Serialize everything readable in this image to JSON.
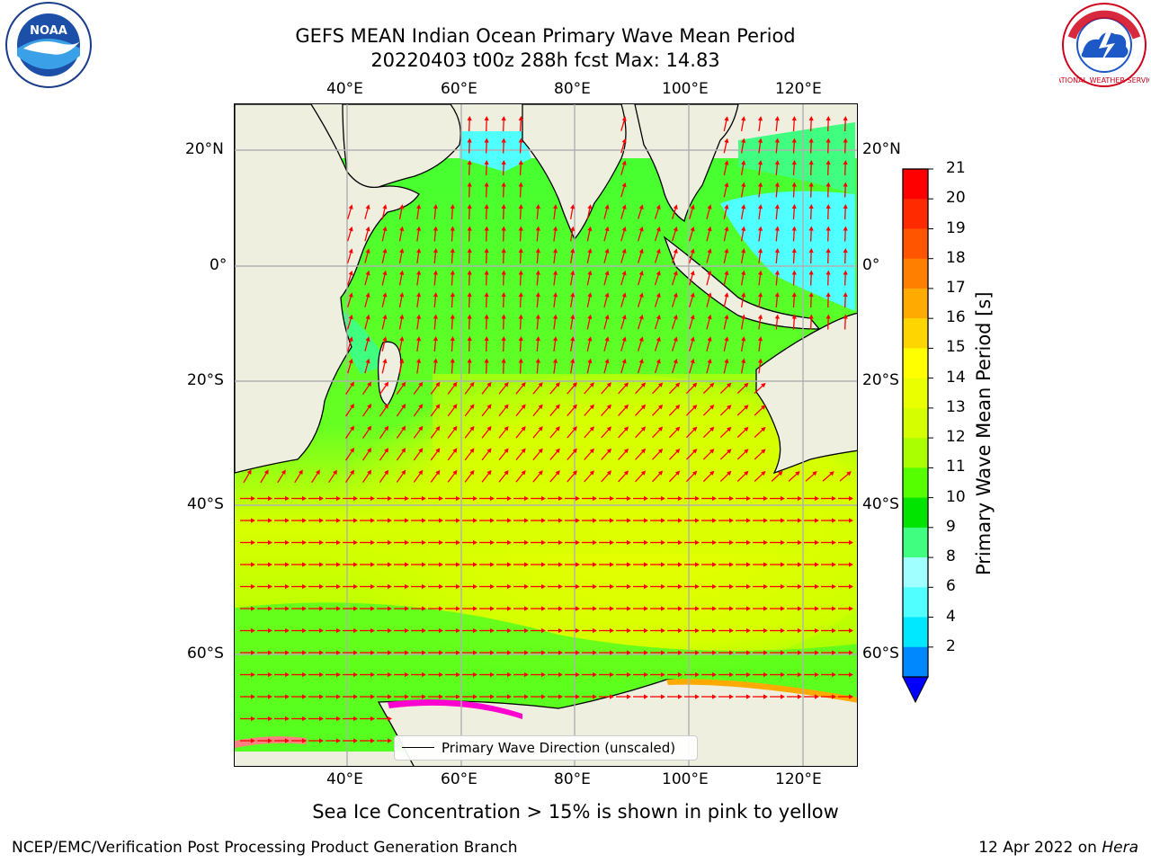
{
  "title_line1": "GEFS MEAN Indian Ocean Primary Wave Mean Period",
  "title_line2": "20220403 t00z 288h fcst   Max: 14.83",
  "legend_label": "Primary Wave Direction (unscaled)",
  "colorbar": {
    "label": "Primary Wave Mean Period [s]",
    "ticks": [
      "21",
      "20",
      "19",
      "18",
      "17",
      "16",
      "15",
      "14",
      "13",
      "12",
      "11",
      "10",
      "9",
      "8",
      "6",
      "4",
      "2"
    ],
    "colors": [
      "#ff0000",
      "#ff2a00",
      "#ff5500",
      "#ff8000",
      "#ffaa00",
      "#ffd500",
      "#ffff00",
      "#eaff00",
      "#d5ff00",
      "#aaff00",
      "#55ff00",
      "#00e400",
      "#40ff80",
      "#a0ffff",
      "#50ffff",
      "#00e8ff",
      "#0088ff"
    ],
    "under_color": "#0000ff"
  },
  "axes": {
    "lon_ticks": [
      "40°E",
      "60°E",
      "80°E",
      "100°E",
      "120°E"
    ],
    "lat_ticks_left": [
      "20°N",
      "0°",
      "20°S",
      "40°S",
      "60°S"
    ],
    "lat_ticks_right": [
      "20°N",
      "0°",
      "20°S",
      "40°S",
      "60°S"
    ]
  },
  "bottom_note": "Sea Ice Concentration > 15% is shown in pink to yellow",
  "footer_left": "NCEP/EMC/Verification Post Processing Product Generation Branch",
  "footer_date": "12 Apr 2022 on",
  "footer_host": "Hera",
  "logos": {
    "left": "NOAA",
    "right": "NATIONAL WEATHER SERVICE"
  },
  "colors": {
    "land": "#efefe0",
    "arrow": "#ff0000",
    "ice": "#ff00d0"
  }
}
